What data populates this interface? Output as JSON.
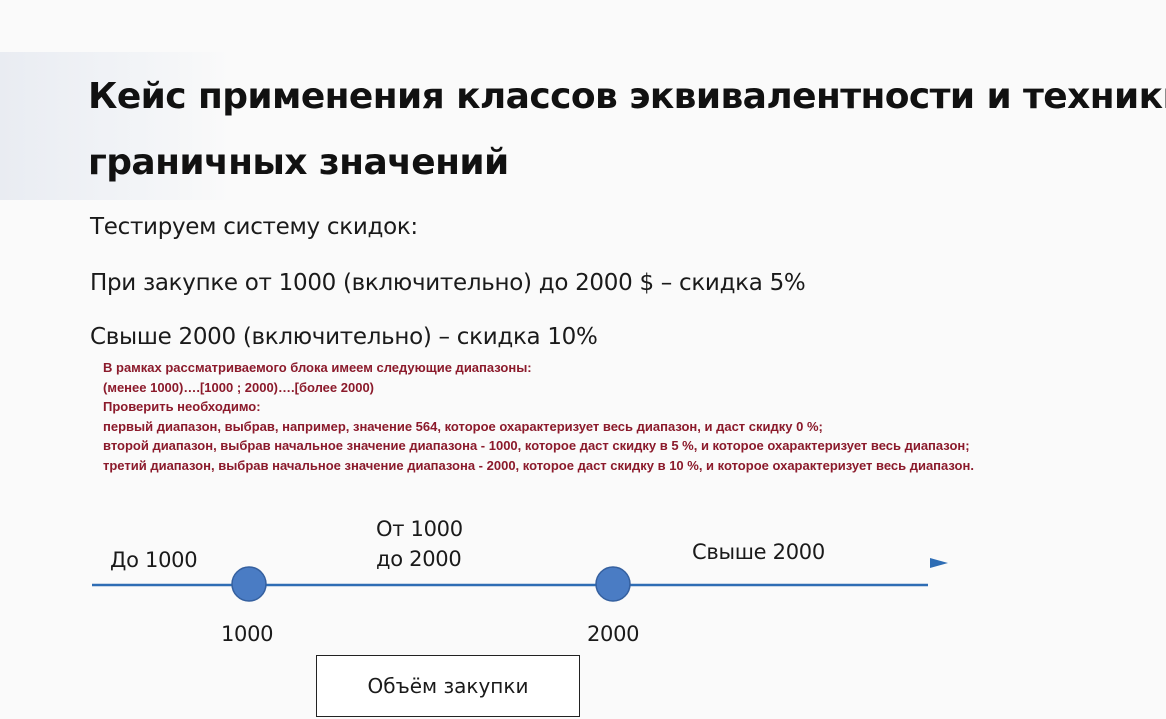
{
  "slide": {
    "title_line1": "Кейс применения классов эквивалентности и техники",
    "title_line2": "граничных значений",
    "lines": [
      "Тестируем систему скидок:",
      "При закупке от 1000 (включительно) до 2000 $ – скидка 5%",
      "Свыше 2000 (включительно) – скидка 10%"
    ],
    "notes": [
      "В рамках рассматриваемого блока имеем следующие диапазоны:",
      "(менее 1000)….[1000 ; 2000)….[более 2000)",
      "Проверить необходимо:",
      "первый диапазон, выбрав, например, значение 564, которое охарактеризует весь диапазон, и даст скидку 0 %;",
      "второй диапазон, выбрав начальное значение диапазона - 1000, которое даст скидку в 5 %, и которое охарактеризует весь диапазон;",
      "третий диапазон, выбрав начальное значение  диапазона - 2000, которое даст скидку  в 10 %, и которое охарактеризует весь диапазон."
    ]
  },
  "diagram": {
    "range_labels": {
      "first": "До 1000",
      "second_line1": "От 1000",
      "second_line2": "до 2000",
      "third": "Свыше 2000"
    },
    "ticks": [
      {
        "label": "1000",
        "value": 1000
      },
      {
        "label": "2000",
        "value": 2000
      }
    ],
    "axis_label": "Объём закупки",
    "colors": {
      "line": "#2e6db4",
      "point_fill": "#4a7cc4",
      "point_stroke": "#35609f",
      "arrow": "#2e6db4"
    }
  }
}
